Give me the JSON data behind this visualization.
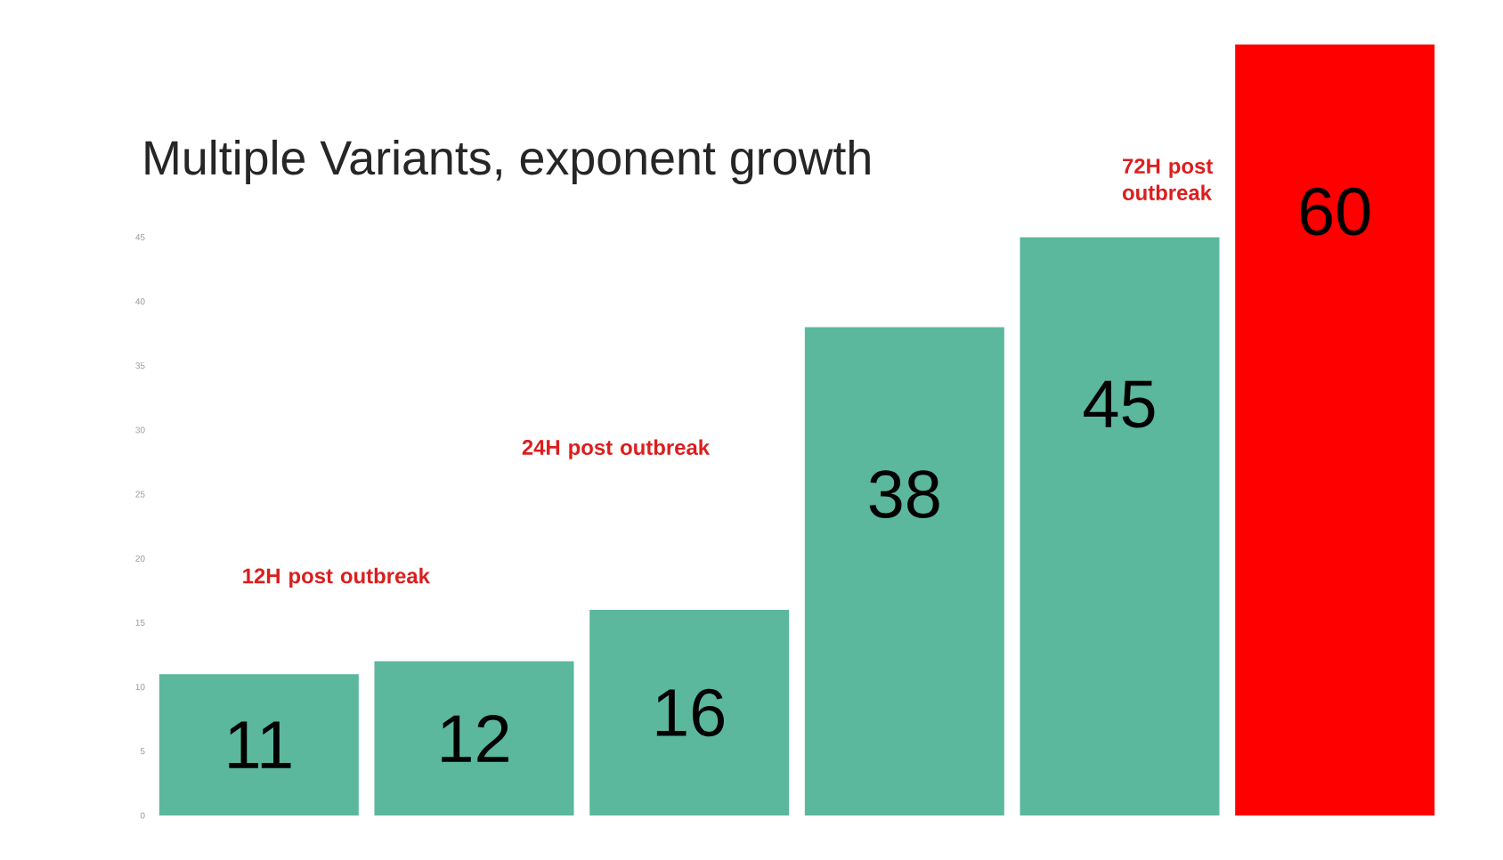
{
  "chart_data": {
    "type": "bar",
    "title": "Multiple Variants, exponent growth",
    "categories": [
      null,
      null,
      null,
      null,
      null,
      null
    ],
    "values": [
      11,
      12,
      16,
      38,
      45,
      60
    ],
    "colors": [
      "#5bb89d",
      "#5bb89d",
      "#5bb89d",
      "#5bb89d",
      "#5bb89d",
      "#ff0000"
    ],
    "ylim": [
      0,
      60
    ],
    "yticks": [
      0,
      5,
      10,
      15,
      20,
      25,
      30,
      35,
      40,
      45
    ],
    "data_labels": true,
    "annotations": [
      "12H post outbreak",
      "24H post outbreak",
      "72H post outbreak"
    ]
  }
}
